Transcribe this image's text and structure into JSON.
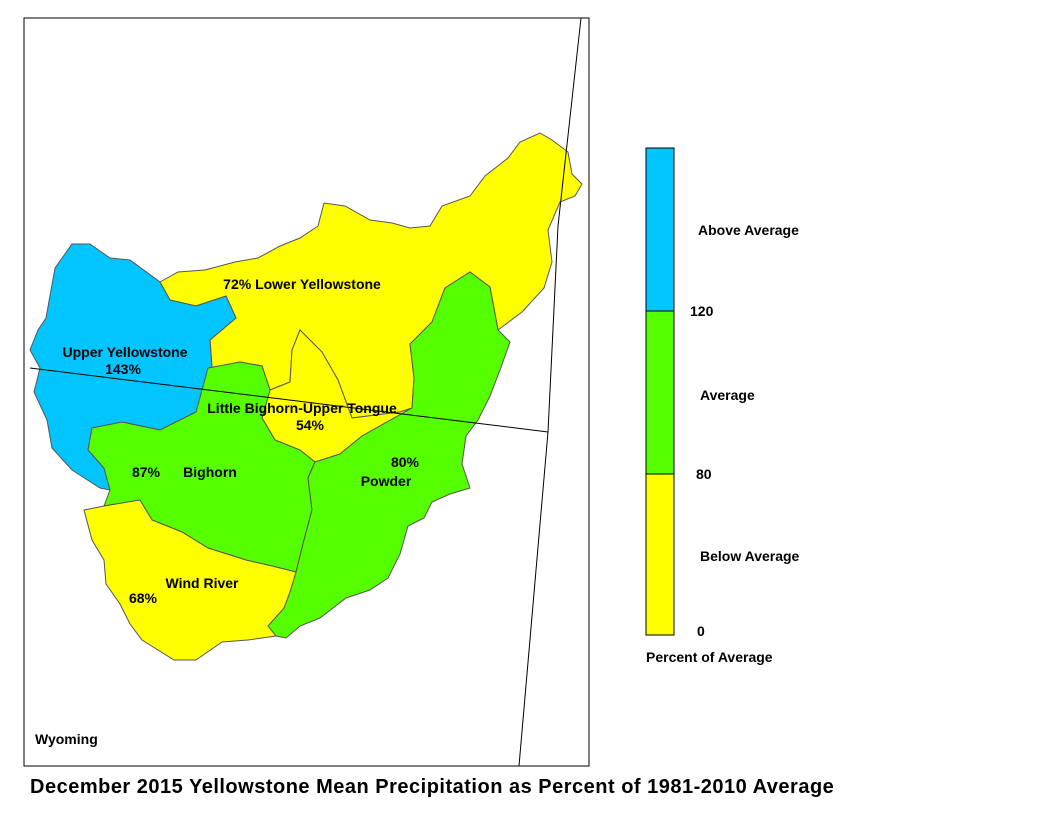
{
  "title": "December 2015 Yellowstone Mean Precipitation as Percent of 1981-2010 Average",
  "state_label": "Wyoming",
  "colors": {
    "above": "#00c5ff",
    "average": "#55ff00",
    "below": "#ffff00"
  },
  "basins": [
    {
      "name": "Upper Yellowstone",
      "value": "143%",
      "category": "above"
    },
    {
      "name": "Lower Yellowstone",
      "value": "72%",
      "category": "below"
    },
    {
      "name": "Little Bighorn-Upper Tongue",
      "value": "54%",
      "category": "below"
    },
    {
      "name": "Bighorn",
      "value": "87%",
      "category": "average"
    },
    {
      "name": "Powder",
      "value": "80%",
      "category": "average"
    },
    {
      "name": "Wind River",
      "value": "68%",
      "category": "below"
    }
  ],
  "legend": {
    "items": [
      {
        "label": "Above Average",
        "category": "above"
      },
      {
        "label": "Average",
        "category": "average"
      },
      {
        "label": "Below Average",
        "category": "below"
      }
    ],
    "breaks": [
      "120",
      "80",
      "0"
    ],
    "caption": "Percent of Average"
  }
}
